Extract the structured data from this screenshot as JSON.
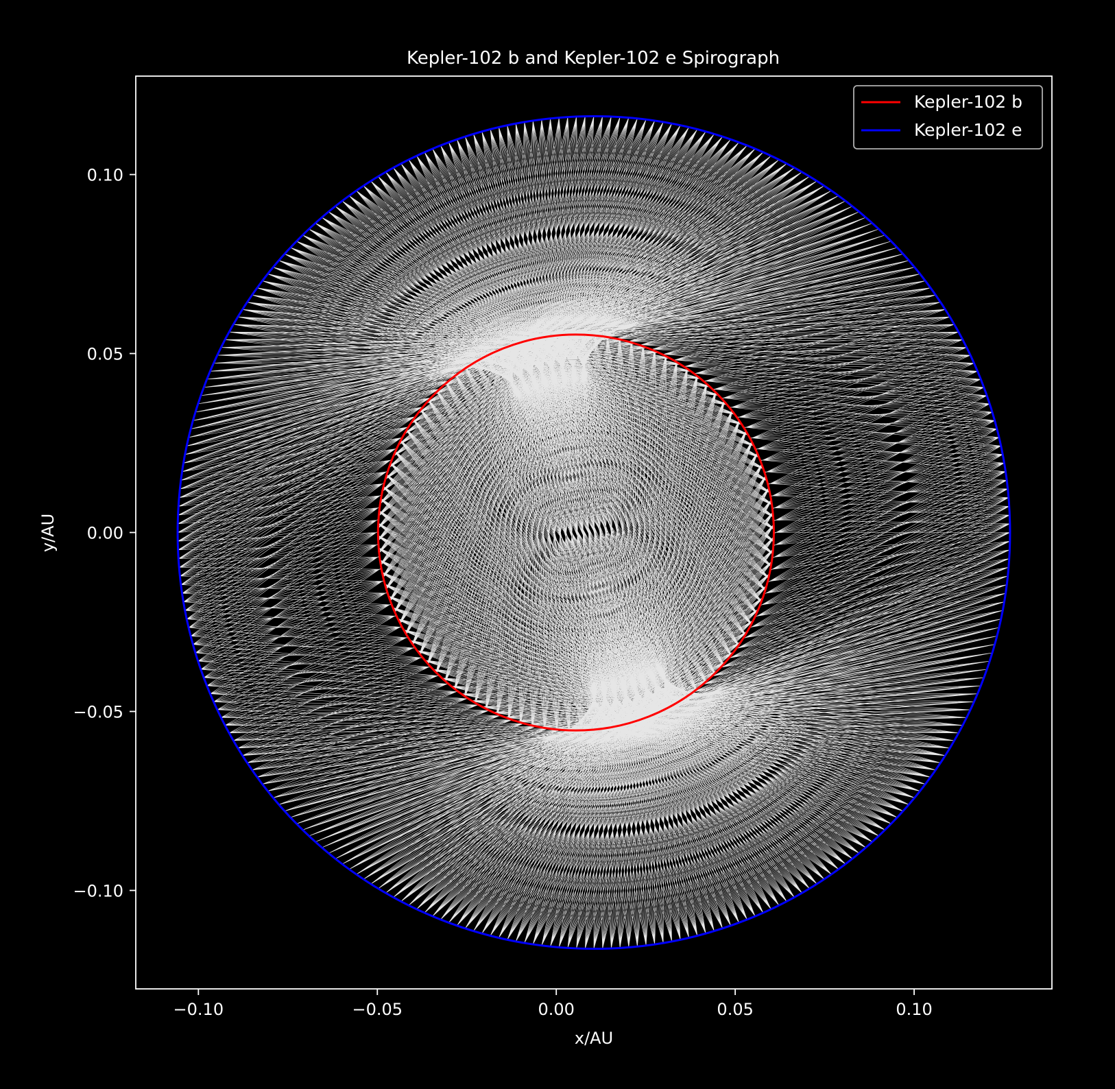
{
  "chart_data": {
    "type": "line",
    "title": "Kepler-102 b and Kepler-102 e Spirograph",
    "xlabel": "x/AU",
    "ylabel": "y/AU",
    "xlim": [
      -0.1175,
      0.1385
    ],
    "ylim": [
      -0.1275,
      0.1275
    ],
    "xticks": [
      -0.1,
      -0.05,
      0.0,
      0.05,
      0.1
    ],
    "yticks": [
      -0.1,
      -0.05,
      0.0,
      0.05,
      0.1
    ],
    "xtick_labels": [
      "−0.10",
      "−0.05",
      "0.00",
      "0.05",
      "0.10"
    ],
    "ytick_labels": [
      "−0.10",
      "−0.05",
      "0.00",
      "0.05",
      "0.10"
    ],
    "grid": false,
    "legend_position": "top-right",
    "background": "#000000",
    "series": [
      {
        "name": "Kepler-102 b",
        "color": "#ff0000",
        "orbit": {
          "semi_major_axis": 0.0553,
          "center": [
            0.0055,
            0.0
          ],
          "period_ratio": 2.98,
          "rotation_direction": "counterclockwise"
        }
      },
      {
        "name": "Kepler-102 e",
        "color": "#0000ff",
        "orbit": {
          "semi_major_axis": 0.1163,
          "center": [
            0.0105,
            0.0
          ],
          "period_ratio": 1.0,
          "rotation_direction": "counterclockwise"
        }
      }
    ],
    "connecting_lines": {
      "color": "#ffffff",
      "count": 2400
    }
  }
}
